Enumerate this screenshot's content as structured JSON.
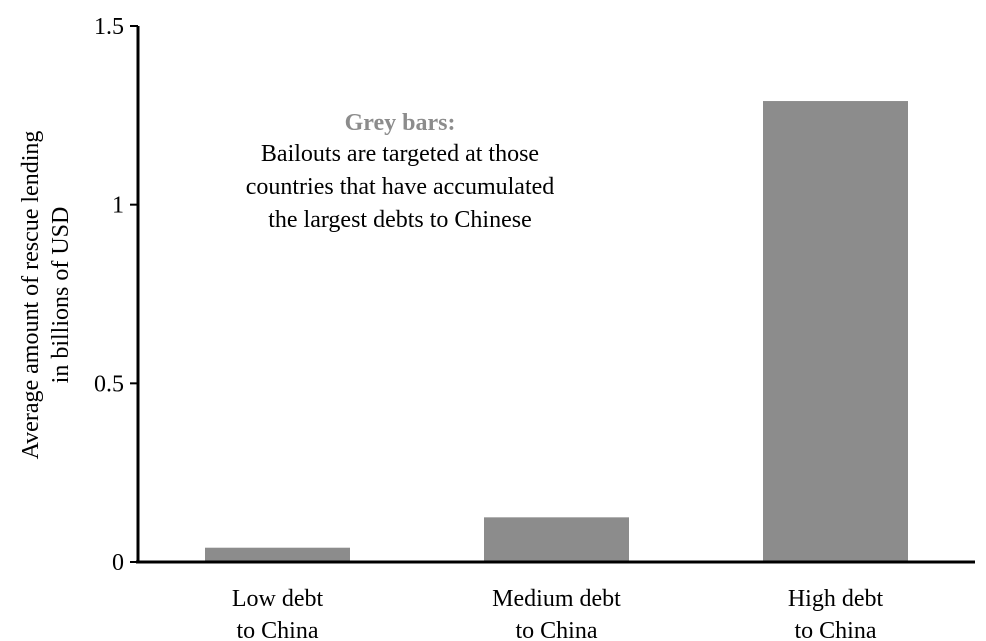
{
  "chart_data": {
    "type": "bar",
    "categories": [
      [
        "Low debt",
        "to China"
      ],
      [
        "Medium debt",
        "to China"
      ],
      [
        "High debt",
        "to China"
      ]
    ],
    "values": [
      0.04,
      0.125,
      1.29
    ],
    "ylabel_lines": [
      "Average amount of rescue lending",
      "in billions of USD"
    ],
    "xlabel": "",
    "title": "",
    "ylim": [
      0,
      1.5
    ],
    "yticks": [
      {
        "value": 0,
        "label": "0"
      },
      {
        "value": 0.5,
        "label": "0.5"
      },
      {
        "value": 1,
        "label": "1"
      },
      {
        "value": 1.5,
        "label": "1.5"
      }
    ],
    "grid": false,
    "bar_color": "#8c8c8c",
    "annotation": {
      "title": "Grey bars:",
      "lines": [
        "Bailouts are targeted at those",
        "countries that have accumulated",
        "the largest debts to Chinese"
      ]
    }
  }
}
